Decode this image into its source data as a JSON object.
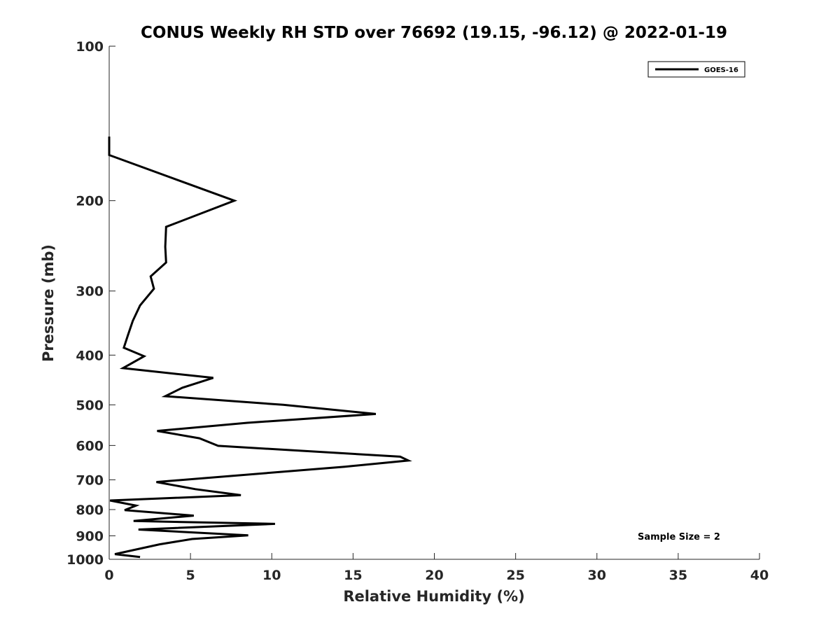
{
  "chart_data": {
    "type": "line",
    "title": "CONUS Weekly RH STD over 76692 (19.15, -96.12) @ 2022-01-19",
    "xlabel": "Relative Humidity (%)",
    "ylabel": "Pressure (mb)",
    "xlim": [
      0,
      40
    ],
    "ylim": [
      100,
      1000
    ],
    "y_scale": "log",
    "y_reversed": true,
    "x_ticks": [
      "0",
      "5",
      "10",
      "15",
      "20",
      "25",
      "30",
      "35",
      "40"
    ],
    "x_tick_values": [
      0,
      5,
      10,
      15,
      20,
      25,
      30,
      35,
      40
    ],
    "y_ticks": [
      "100",
      "200",
      "300",
      "400",
      "500",
      "600",
      "700",
      "800",
      "900",
      "1000"
    ],
    "y_tick_values": [
      100,
      200,
      300,
      400,
      500,
      600,
      700,
      800,
      900,
      1000
    ],
    "grid": false,
    "legend_position": "top-right",
    "annotation": "Sample Size = 2",
    "series": [
      {
        "name": "GOES-16",
        "color": "#000000",
        "points": [
          [
            0.0,
            150
          ],
          [
            0.0,
            163
          ],
          [
            7.7,
            200
          ],
          [
            3.5,
            225
          ],
          [
            3.45,
            246
          ],
          [
            3.5,
            264
          ],
          [
            2.55,
            281
          ],
          [
            2.75,
            297
          ],
          [
            1.9,
            320
          ],
          [
            1.45,
            343
          ],
          [
            1.15,
            366
          ],
          [
            0.9,
            387
          ],
          [
            2.15,
            402
          ],
          [
            0.85,
            424
          ],
          [
            6.4,
            443
          ],
          [
            4.5,
            463
          ],
          [
            3.45,
            481
          ],
          [
            10.7,
            500
          ],
          [
            16.4,
            521
          ],
          [
            8.5,
            542
          ],
          [
            2.95,
            562
          ],
          [
            5.55,
            581
          ],
          [
            6.7,
            601
          ],
          [
            17.9,
            631
          ],
          [
            18.4,
            642
          ],
          [
            14.5,
            660
          ],
          [
            2.9,
            707
          ],
          [
            5.3,
            730
          ],
          [
            8.1,
            750
          ],
          [
            0.05,
            768
          ],
          [
            1.65,
            786
          ],
          [
            0.95,
            802
          ],
          [
            5.2,
            822
          ],
          [
            1.5,
            842
          ],
          [
            10.2,
            853
          ],
          [
            1.8,
            875
          ],
          [
            8.55,
            898
          ],
          [
            5.1,
            913
          ],
          [
            3.1,
            935
          ],
          [
            0.35,
            977
          ],
          [
            1.9,
            990
          ]
        ]
      }
    ]
  }
}
